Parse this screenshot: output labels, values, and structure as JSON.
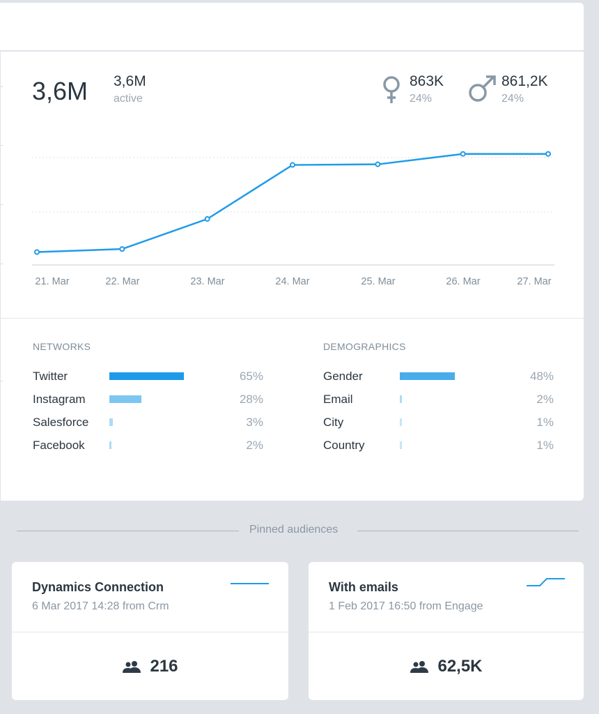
{
  "summary": {
    "total": "3,6M",
    "active_value": "3,6M",
    "active_label": "active",
    "female": {
      "value": "863K",
      "percent": "24%",
      "icon": "female-icon"
    },
    "male": {
      "value": "861,2K",
      "percent": "24%",
      "icon": "male-icon"
    }
  },
  "chart_data": {
    "type": "line",
    "categories": [
      "21. Mar",
      "22. Mar",
      "23. Mar",
      "24. Mar",
      "25. Mar",
      "26. Mar",
      "27. Mar"
    ],
    "series": [
      {
        "values": [
          0.21,
          0.26,
          0.75,
          1.63,
          1.64,
          1.81,
          1.81
        ]
      }
    ],
    "ylim": [
      0,
      2.0
    ],
    "grid": true,
    "colors": {
      "line": "#1e9be8",
      "grid": "#dde2e6",
      "axis": "#c7ced4"
    }
  },
  "networks": {
    "title": "NETWORKS",
    "items": [
      {
        "label": "Twitter",
        "percent": "65%",
        "value": 65,
        "color": "#1e9be8"
      },
      {
        "label": "Instagram",
        "percent": "28%",
        "value": 28,
        "color": "#7cc6f2"
      },
      {
        "label": "Salesforce",
        "percent": "3%",
        "value": 3,
        "color": "#aadcf7"
      },
      {
        "label": "Facebook",
        "percent": "2%",
        "value": 2,
        "color": "#aadcf7"
      }
    ]
  },
  "demographics": {
    "title": "DEMOGRAPHICS",
    "items": [
      {
        "label": "Gender",
        "percent": "48%",
        "value": 48,
        "color": "#4aaceb"
      },
      {
        "label": "Email",
        "percent": "2%",
        "value": 2,
        "color": "#aadcf7"
      },
      {
        "label": "City",
        "percent": "1%",
        "value": 1,
        "color": "#c4e6f9"
      },
      {
        "label": "Country",
        "percent": "1%",
        "value": 1,
        "color": "#c4e6f9"
      }
    ]
  },
  "pinned": {
    "label": "Pinned audiences",
    "cards": [
      {
        "title": "Dynamics Connection",
        "subtitle": "6 Mar 2017 14:28 from Crm",
        "count": "216",
        "icon": "people-icon",
        "spark": "flat"
      },
      {
        "title": "With emails",
        "subtitle": "1 Feb 2017 16:50 from Engage",
        "count": "62,5K",
        "icon": "people-icon",
        "spark": "step"
      }
    ]
  }
}
